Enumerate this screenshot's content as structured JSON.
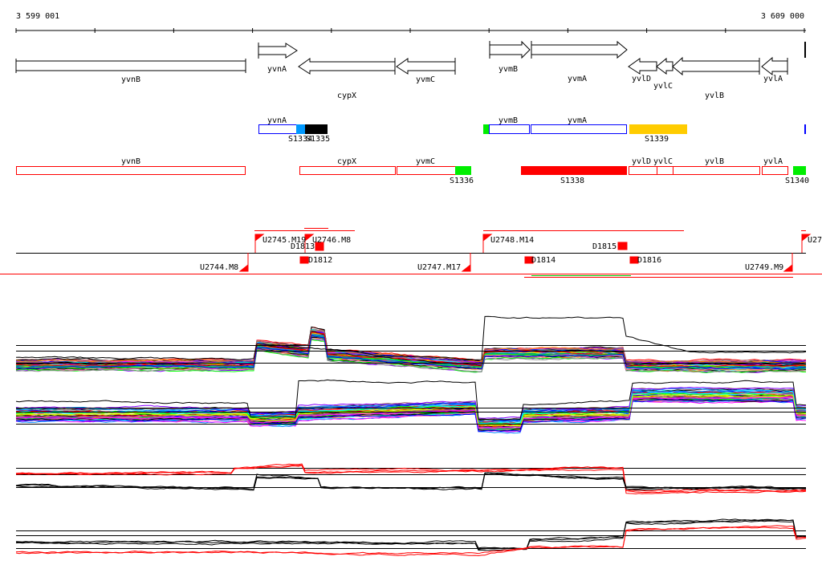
{
  "ruler": {
    "start_label": "3 599 001",
    "end_label": "3 609 000"
  },
  "genes": {
    "yvnB": "yvnB",
    "yvnA": "yvnA",
    "cypX": "cypX",
    "yvmC": "yvmC",
    "yvmB": "yvmB",
    "yvmA": "yvmA",
    "yvlD": "yvlD",
    "yvlC": "yvlC",
    "yvlB": "yvlB",
    "yvlA": "yvlA"
  },
  "segments": {
    "S1334": "S1334",
    "S1335": "S1335",
    "S1336": "S1336",
    "S1338": "S1338",
    "S1339": "S1339",
    "S1340": "S1340"
  },
  "features": {
    "U2744": "U2744.M8",
    "U2745": "U2745.M19",
    "U2746": "U2746.M8",
    "U2747": "U2747.M17",
    "U2748": "U2748.M14",
    "U2749": "U2749.M9",
    "U27": "U27",
    "D1812": "D1812",
    "D1813": "D1813",
    "D1814": "D1814",
    "D1815": "D1815",
    "D1816": "D1816"
  },
  "colors": {
    "gene_outline": "#000000",
    "track_blue": "#0000ff",
    "track_red": "#ff0000",
    "light_blue": "#0099ff",
    "orange": "#ffcc00",
    "green": "#00ee00"
  }
}
